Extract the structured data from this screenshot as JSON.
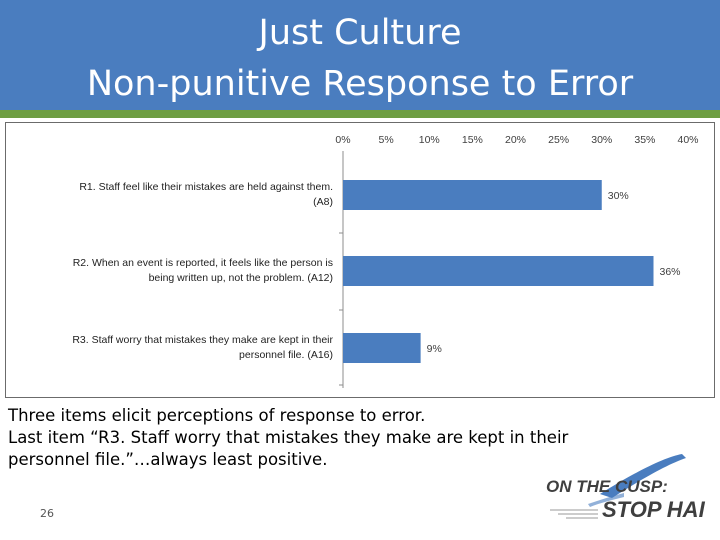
{
  "slide": {
    "title_line1": "Just Culture",
    "title_line2": "Non-punitive Response to Error",
    "caption": [
      "Three items elicit perceptions of response to error.",
      "Last item “R3. Staff worry that mistakes they make are kept in their",
      "personnel file.”…always least positive."
    ],
    "page_number": "26",
    "logo": {
      "line1": "ON THE CUSP:",
      "line2": "STOP HAI"
    },
    "colors": {
      "title_bar": "#4a7dbf",
      "title_rule": "#6e9e43",
      "bar": "#4a7dbf",
      "logo_text": "#3f3f3f",
      "logo_swoosh": "#4a7dbf"
    }
  },
  "chart_data": {
    "type": "bar",
    "orientation": "horizontal",
    "categories": [
      [
        "R1. Staff feel like their mistakes are held against them.",
        "(A8)"
      ],
      [
        "R2. When an event is reported, it feels like the person is",
        "being written up, not the problem.  (A12)"
      ],
      [
        "R3. Staff worry that mistakes they make are kept in their",
        "personnel file.  (A16)"
      ]
    ],
    "values": [
      30,
      36,
      9
    ],
    "data_labels": [
      "30%",
      "36%",
      "9%"
    ],
    "xlim": [
      0,
      40
    ],
    "x_ticks": [
      "0%",
      "5%",
      "10%",
      "15%",
      "20%",
      "25%",
      "30%",
      "35%",
      "40%"
    ],
    "x_axis_position": "top",
    "grid": false,
    "title": "",
    "xlabel": "",
    "ylabel": ""
  }
}
